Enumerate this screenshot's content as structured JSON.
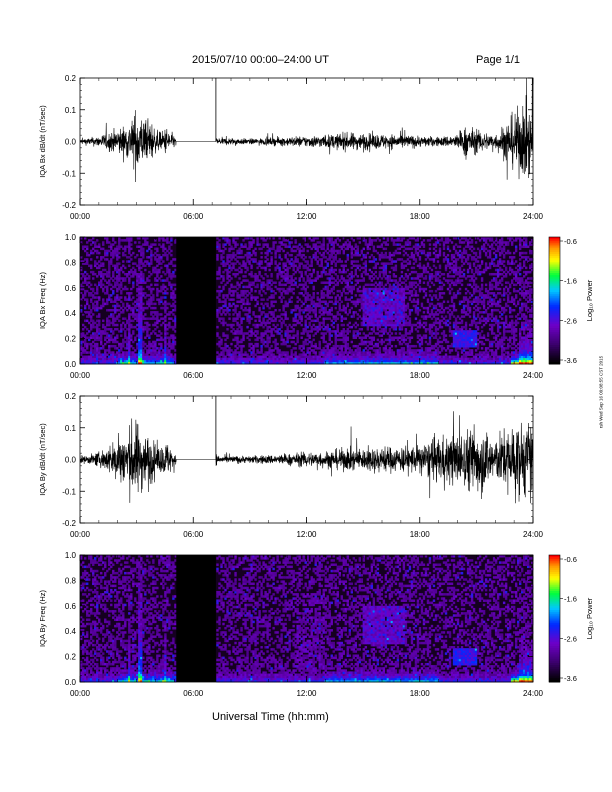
{
  "header": {
    "date_range": "2015/07/10  00:00–24:00 UT",
    "page": "Page 1/1"
  },
  "footer": {
    "xlabel": "Universal Time (hh:mm)"
  },
  "stamp": "rsh Wed Sep 16 09:08:55 CST 2015",
  "colorbar": {
    "label": "Log₁₀ Power",
    "ticks": [
      "-0.6",
      "-1.6",
      "-2.6",
      "-3.6"
    ],
    "colors": [
      "#ff0000",
      "#ff9900",
      "#ffff00",
      "#00ff00",
      "#00c8ff",
      "#0000ff",
      "#9900ff",
      "#000000"
    ]
  },
  "chart_data": [
    {
      "type": "line",
      "ylabel": "IQA Bx dB/dt (nT/sec)",
      "ylim": [
        -0.2,
        0.2
      ],
      "yticks": [
        "0.2",
        "0.1",
        "0.0",
        "-0.1",
        "-0.2"
      ],
      "xticks": [
        "00:00",
        "06:00",
        "12:00",
        "18:00",
        "24:00"
      ],
      "xlim": [
        0,
        24
      ],
      "data_gap": [
        5.1,
        7.2
      ],
      "envelope": {
        "hours": [
          0,
          0.5,
          1,
          1.5,
          2,
          2.5,
          2.8,
          3,
          3.2,
          3.5,
          3.8,
          4,
          4.3,
          4.6,
          5,
          7.2,
          7.5,
          8,
          9,
          10,
          11,
          12,
          13,
          14,
          15,
          16,
          17,
          18,
          19,
          20,
          20.5,
          21,
          22,
          22.5,
          23,
          23.5,
          24
        ],
        "amplitude": [
          0.015,
          0.02,
          0.03,
          0.05,
          0.07,
          0.09,
          0.12,
          0.2,
          0.15,
          0.1,
          0.11,
          0.06,
          0.05,
          0.08,
          0.03,
          0.02,
          0.02,
          0.02,
          0.015,
          0.02,
          0.025,
          0.03,
          0.035,
          0.045,
          0.045,
          0.04,
          0.04,
          0.03,
          0.025,
          0.04,
          0.09,
          0.06,
          0.04,
          0.1,
          0.15,
          0.2,
          0.2
        ]
      }
    },
    {
      "type": "heatmap",
      "ylabel": "IQA Bx Freq (Hz)",
      "ylim": [
        0.0,
        1.0
      ],
      "yticks": [
        "1.0",
        "0.8",
        "0.6",
        "0.4",
        "0.2",
        "0.0"
      ],
      "xticks": [
        "00:00",
        "06:00",
        "12:00",
        "18:00",
        "24:00"
      ],
      "xlim": [
        0,
        24
      ],
      "zlim": [
        -3.6,
        -0.6
      ],
      "data_gap": [
        5.1,
        7.2
      ]
    },
    {
      "type": "line",
      "ylabel": "IQA By dB/dt (nT/sec)",
      "ylim": [
        -0.2,
        0.2
      ],
      "yticks": [
        "0.2",
        "0.1",
        "0.0",
        "-0.1",
        "-0.2"
      ],
      "xticks": [
        "00:00",
        "06:00",
        "12:00",
        "18:00",
        "24:00"
      ],
      "xlim": [
        0,
        24
      ],
      "data_gap": [
        5.1,
        7.2
      ],
      "envelope": {
        "hours": [
          0,
          0.5,
          1,
          1.5,
          2,
          2.5,
          2.8,
          3,
          3.2,
          3.5,
          3.8,
          4,
          4.3,
          4.6,
          5,
          7.2,
          7.5,
          8,
          9,
          10,
          11,
          12,
          13,
          14,
          15,
          16,
          17,
          18,
          19,
          20,
          20.5,
          21,
          22,
          22.5,
          23,
          23.5,
          24
        ],
        "amplitude": [
          0.02,
          0.025,
          0.04,
          0.07,
          0.12,
          0.16,
          0.2,
          0.2,
          0.18,
          0.14,
          0.12,
          0.08,
          0.07,
          0.1,
          0.04,
          0.03,
          0.02,
          0.02,
          0.02,
          0.025,
          0.03,
          0.04,
          0.045,
          0.06,
          0.06,
          0.07,
          0.07,
          0.08,
          0.12,
          0.14,
          0.16,
          0.2,
          0.12,
          0.16,
          0.2,
          0.2,
          0.2
        ]
      }
    },
    {
      "type": "heatmap",
      "ylabel": "IQA By Freq (Hz)",
      "ylim": [
        0.0,
        1.0
      ],
      "yticks": [
        "1.0",
        "0.8",
        "0.6",
        "0.4",
        "0.2",
        "0.0"
      ],
      "xticks": [
        "00:00",
        "06:00",
        "12:00",
        "18:00",
        "24:00"
      ],
      "xlim": [
        0,
        24
      ],
      "zlim": [
        -3.6,
        -0.6
      ],
      "data_gap": [
        5.1,
        7.2
      ]
    }
  ]
}
